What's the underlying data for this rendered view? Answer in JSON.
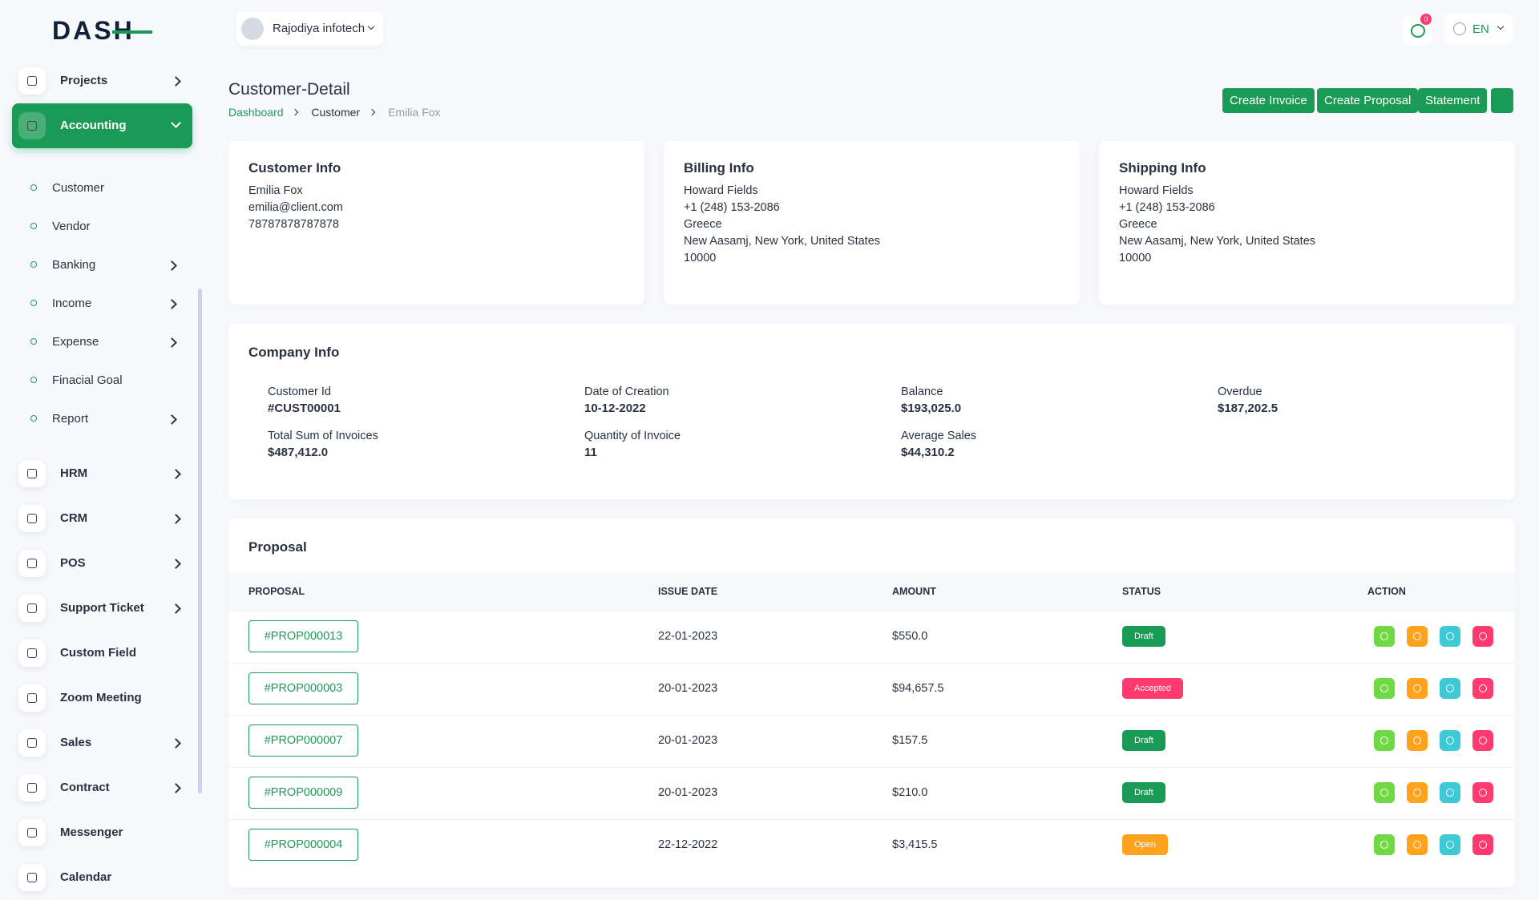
{
  "header": {
    "logo": "DASH",
    "user": "Rajodiya infotech",
    "notification_count": "0",
    "language": "EN"
  },
  "sidebar": {
    "items": [
      {
        "label": "Projects",
        "has_submenu": true
      },
      {
        "label": "Accounting",
        "has_submenu": true,
        "active": true,
        "children": [
          {
            "label": "Customer",
            "has_submenu": false
          },
          {
            "label": "Vendor",
            "has_submenu": false
          },
          {
            "label": "Banking",
            "has_submenu": true
          },
          {
            "label": "Income",
            "has_submenu": true
          },
          {
            "label": "Expense",
            "has_submenu": true
          },
          {
            "label": "Finacial Goal",
            "has_submenu": false
          },
          {
            "label": "Report",
            "has_submenu": true
          }
        ]
      },
      {
        "label": "HRM",
        "has_submenu": true
      },
      {
        "label": "CRM",
        "has_submenu": true
      },
      {
        "label": "POS",
        "has_submenu": true
      },
      {
        "label": "Support Ticket",
        "has_submenu": true
      },
      {
        "label": "Custom Field",
        "has_submenu": false
      },
      {
        "label": "Zoom Meeting",
        "has_submenu": false
      },
      {
        "label": "Sales",
        "has_submenu": true
      },
      {
        "label": "Contract",
        "has_submenu": true
      },
      {
        "label": "Messenger",
        "has_submenu": false
      },
      {
        "label": "Calendar",
        "has_submenu": false
      }
    ]
  },
  "page": {
    "title": "Customer-Detail",
    "breadcrumb": [
      "Dashboard",
      "Customer",
      "Emilia Fox"
    ],
    "actions": [
      "Create Invoice",
      "Create Proposal",
      "Statement"
    ]
  },
  "info_cards": [
    {
      "title": "Customer Info",
      "lines": [
        "Emilia Fox",
        "emilia@client.com",
        "78787878787878"
      ]
    },
    {
      "title": "Billing Info",
      "lines": [
        "Howard Fields",
        "+1 (248) 153-2086",
        "Greece",
        "New Aasamj, New York, United States",
        "10000"
      ]
    },
    {
      "title": "Shipping Info",
      "lines": [
        "Howard Fields",
        "+1 (248) 153-2086",
        "Greece",
        "New Aasamj, New York, United States",
        "10000"
      ]
    }
  ],
  "company_info": {
    "title": "Company Info",
    "fields": [
      {
        "label": "Customer Id",
        "value": "#CUST00001"
      },
      {
        "label": "Date of Creation",
        "value": "10-12-2022"
      },
      {
        "label": "Balance",
        "value": "$193,025.0"
      },
      {
        "label": "Overdue",
        "value": "$187,202.5"
      },
      {
        "label": "Total Sum of Invoices",
        "value": "$487,412.0"
      },
      {
        "label": "Quantity of Invoice",
        "value": "11"
      },
      {
        "label": "Average Sales",
        "value": "$44,310.2"
      }
    ]
  },
  "proposal": {
    "title": "Proposal",
    "columns": [
      "PROPOSAL",
      "ISSUE DATE",
      "AMOUNT",
      "STATUS",
      "ACTION"
    ],
    "rows": [
      {
        "id": "#PROP000013",
        "issue_date": "22-01-2023",
        "amount": "$550.0",
        "status": "Draft",
        "status_color": "#1a9b55"
      },
      {
        "id": "#PROP000003",
        "issue_date": "20-01-2023",
        "amount": "$94,657.5",
        "status": "Accepted",
        "status_color": "#ff3a6e"
      },
      {
        "id": "#PROP000007",
        "issue_date": "20-01-2023",
        "amount": "$157.5",
        "status": "Draft",
        "status_color": "#1a9b55"
      },
      {
        "id": "#PROP000009",
        "issue_date": "20-01-2023",
        "amount": "$210.0",
        "status": "Draft",
        "status_color": "#1a9b55"
      },
      {
        "id": "#PROP000004",
        "issue_date": "22-12-2022",
        "amount": "$3,415.5",
        "status": "Open",
        "status_color": "#ffa21d"
      }
    ]
  }
}
